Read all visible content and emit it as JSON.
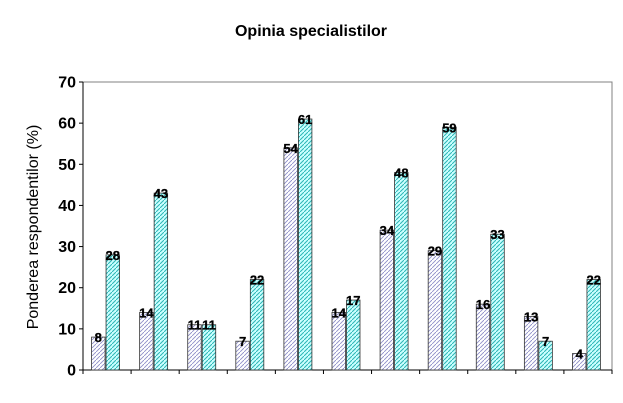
{
  "chart_data": {
    "type": "bar",
    "title": "Opinia specialistilor",
    "xlabel": "",
    "ylabel": "Ponderea respondentilor (%)",
    "ylim": [
      0,
      70
    ],
    "yticks": [
      "0",
      "10",
      "20",
      "30",
      "40",
      "50",
      "60",
      "70"
    ],
    "grid": false,
    "legend": "none",
    "categories": [
      "",
      "",
      "",
      "",
      "",
      "",
      "",
      "",
      "",
      "",
      ""
    ],
    "series": [
      {
        "values": [
          8,
          14,
          11,
          7,
          54,
          14,
          34,
          29,
          16,
          13,
          4
        ],
        "color": "#9999cc",
        "pattern": "diagonal-hatch"
      },
      {
        "values": [
          28,
          43,
          11,
          22,
          61,
          17,
          48,
          59,
          33,
          7,
          22
        ],
        "color": "#33cccc",
        "pattern": "diagonal-hatch",
        "fill": "#ccffff"
      }
    ]
  }
}
